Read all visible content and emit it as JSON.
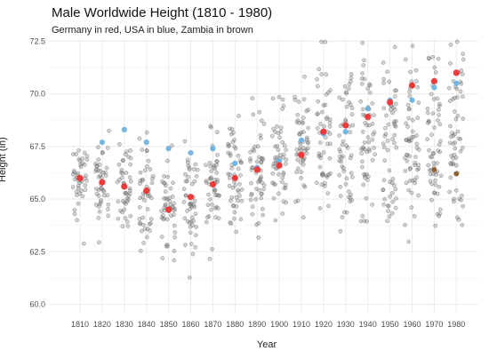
{
  "chart_data": {
    "type": "scatter",
    "title": "Male Worldwide Height (1810 - 1980)",
    "subtitle": "Germany in red, USA in blue, Zambia in brown",
    "xlabel": "Year",
    "ylabel": "Height (in)",
    "x_categories": [
      "1810",
      "1820",
      "1830",
      "1840",
      "1850",
      "1860",
      "1870",
      "1880",
      "1890",
      "1900",
      "1910",
      "1920",
      "1930",
      "1940",
      "1950",
      "1960",
      "1970",
      "1980"
    ],
    "ylim": [
      59.6,
      72.6
    ],
    "y_ticks": [
      "60.0",
      "62.5",
      "65.0",
      "67.5",
      "70.0",
      "72.5"
    ],
    "grid": true,
    "series": [
      {
        "values": [
          66.0,
          65.8,
          65.6,
          65.4,
          64.5,
          65.1,
          65.7,
          66.0,
          66.4,
          66.6,
          67.1,
          68.2,
          68.5,
          68.9,
          69.6,
          70.4,
          70.6,
          71.0
        ]
      },
      {
        "values": [
          null,
          67.7,
          68.3,
          67.7,
          67.4,
          67.2,
          67.4,
          66.7,
          66.5,
          66.8,
          67.8,
          68.1,
          68.2,
          69.3,
          69.7,
          69.7,
          70.3,
          70.5
        ]
      },
      {
        "values": [
          null,
          null,
          null,
          null,
          null,
          null,
          null,
          null,
          null,
          null,
          null,
          null,
          null,
          null,
          null,
          null,
          66.4,
          66.2
        ]
      }
    ],
    "background_points_description": "~50 grey translucent points per decade showing other countries, roughly 62.5-68 in early decades rising to 63-72 later"
  },
  "colors": {
    "germany": "#ee3333",
    "usa": "#6fb3e0",
    "zambia": "#8b5a2b",
    "other": "#808080",
    "grid": "#ebebeb"
  }
}
